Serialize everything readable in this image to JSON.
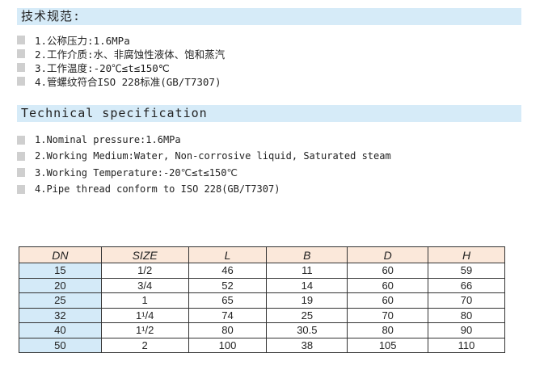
{
  "cn": {
    "title": "技术规范:",
    "items": [
      "1.公称压力:1.6MPa",
      "2.工作介质:水、非腐蚀性液体、饱和蒸汽",
      "3.工作温度:-20℃≤t≤150℃",
      "4.管螺纹符合ISO 228标准(GB/T7307)"
    ]
  },
  "en": {
    "title": "Technical specification",
    "items": [
      "1.Nominal pressure:1.6MPa",
      "2.Working Medium:Water, Non-corrosive liquid, Saturated steam",
      "3.Working Temperature:-20℃≤t≤150℃",
      "4.Pipe thread conform to ISO 228(GB/T7307)"
    ]
  },
  "table": {
    "headers": [
      "DN",
      "SIZE",
      "L",
      "B",
      "D",
      "H"
    ],
    "rows": [
      [
        "15",
        "1/2",
        "46",
        "11",
        "60",
        "59"
      ],
      [
        "20",
        "3/4",
        "52",
        "14",
        "60",
        "66"
      ],
      [
        "25",
        "1",
        "65",
        "19",
        "60",
        "70"
      ],
      [
        "32",
        "1¹/4",
        "74",
        "25",
        "70",
        "80"
      ],
      [
        "40",
        "1¹/2",
        "80",
        "30.5",
        "80",
        "90"
      ],
      [
        "50",
        "2",
        "100",
        "38",
        "105",
        "110"
      ]
    ]
  },
  "colors": {
    "header_bar": "#d6ebf8",
    "table_header": "#fbe8da",
    "dn_column": "#d4eaf8",
    "bullet": "#cfcfcf"
  }
}
